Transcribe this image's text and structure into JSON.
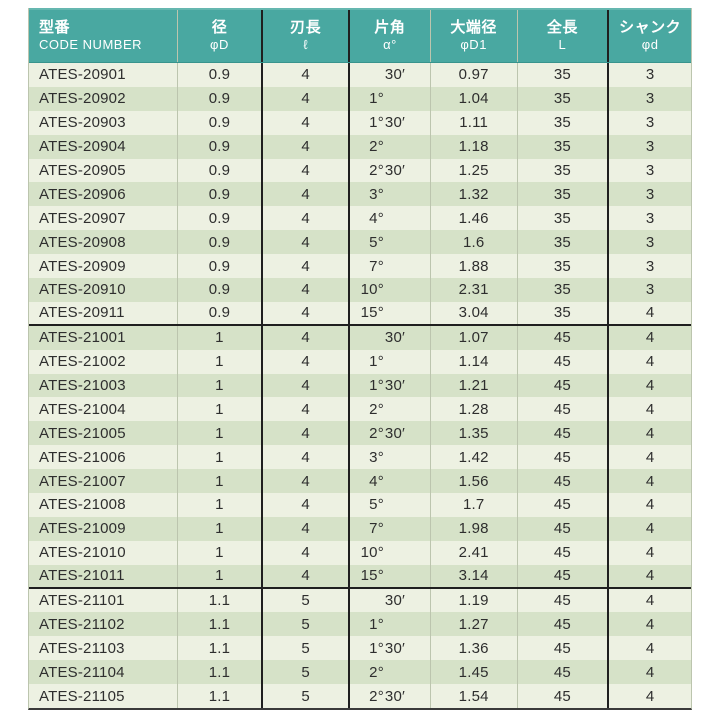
{
  "table": {
    "columns": [
      {
        "jp": "型番",
        "sub": "CODE NUMBER"
      },
      {
        "jp": "径",
        "sub": "φD"
      },
      {
        "jp": "刃長",
        "sub": "ℓ"
      },
      {
        "jp": "片角",
        "sub": "α°"
      },
      {
        "jp": "大端径",
        "sub": "φD1"
      },
      {
        "jp": "全長",
        "sub": "L"
      },
      {
        "jp": "シャンク",
        "sub": "φd"
      }
    ],
    "rows": [
      {
        "code": "ATES-20901",
        "d": "0.9",
        "l": "4",
        "deg": "",
        "min": "30′",
        "d1": "0.97",
        "L": "35",
        "shank": "3"
      },
      {
        "code": "ATES-20902",
        "d": "0.9",
        "l": "4",
        "deg": "1°",
        "min": "",
        "d1": "1.04",
        "L": "35",
        "shank": "3"
      },
      {
        "code": "ATES-20903",
        "d": "0.9",
        "l": "4",
        "deg": "1°",
        "min": "30′",
        "d1": "1.11",
        "L": "35",
        "shank": "3"
      },
      {
        "code": "ATES-20904",
        "d": "0.9",
        "l": "4",
        "deg": "2°",
        "min": "",
        "d1": "1.18",
        "L": "35",
        "shank": "3"
      },
      {
        "code": "ATES-20905",
        "d": "0.9",
        "l": "4",
        "deg": "2°",
        "min": "30′",
        "d1": "1.25",
        "L": "35",
        "shank": "3"
      },
      {
        "code": "ATES-20906",
        "d": "0.9",
        "l": "4",
        "deg": "3°",
        "min": "",
        "d1": "1.32",
        "L": "35",
        "shank": "3"
      },
      {
        "code": "ATES-20907",
        "d": "0.9",
        "l": "4",
        "deg": "4°",
        "min": "",
        "d1": "1.46",
        "L": "35",
        "shank": "3"
      },
      {
        "code": "ATES-20908",
        "d": "0.9",
        "l": "4",
        "deg": "5°",
        "min": "",
        "d1": "1.6",
        "L": "35",
        "shank": "3"
      },
      {
        "code": "ATES-20909",
        "d": "0.9",
        "l": "4",
        "deg": "7°",
        "min": "",
        "d1": "1.88",
        "L": "35",
        "shank": "3"
      },
      {
        "code": "ATES-20910",
        "d": "0.9",
        "l": "4",
        "deg": "10°",
        "min": "",
        "d1": "2.31",
        "L": "35",
        "shank": "3"
      },
      {
        "code": "ATES-20911",
        "d": "0.9",
        "l": "4",
        "deg": "15°",
        "min": "",
        "d1": "3.04",
        "L": "35",
        "shank": "4"
      },
      {
        "code": "ATES-21001",
        "d": "1",
        "l": "4",
        "deg": "",
        "min": "30′",
        "d1": "1.07",
        "L": "45",
        "shank": "4"
      },
      {
        "code": "ATES-21002",
        "d": "1",
        "l": "4",
        "deg": "1°",
        "min": "",
        "d1": "1.14",
        "L": "45",
        "shank": "4"
      },
      {
        "code": "ATES-21003",
        "d": "1",
        "l": "4",
        "deg": "1°",
        "min": "30′",
        "d1": "1.21",
        "L": "45",
        "shank": "4"
      },
      {
        "code": "ATES-21004",
        "d": "1",
        "l": "4",
        "deg": "2°",
        "min": "",
        "d1": "1.28",
        "L": "45",
        "shank": "4"
      },
      {
        "code": "ATES-21005",
        "d": "1",
        "l": "4",
        "deg": "2°",
        "min": "30′",
        "d1": "1.35",
        "L": "45",
        "shank": "4"
      },
      {
        "code": "ATES-21006",
        "d": "1",
        "l": "4",
        "deg": "3°",
        "min": "",
        "d1": "1.42",
        "L": "45",
        "shank": "4"
      },
      {
        "code": "ATES-21007",
        "d": "1",
        "l": "4",
        "deg": "4°",
        "min": "",
        "d1": "1.56",
        "L": "45",
        "shank": "4"
      },
      {
        "code": "ATES-21008",
        "d": "1",
        "l": "4",
        "deg": "5°",
        "min": "",
        "d1": "1.7",
        "L": "45",
        "shank": "4"
      },
      {
        "code": "ATES-21009",
        "d": "1",
        "l": "4",
        "deg": "7°",
        "min": "",
        "d1": "1.98",
        "L": "45",
        "shank": "4"
      },
      {
        "code": "ATES-21010",
        "d": "1",
        "l": "4",
        "deg": "10°",
        "min": "",
        "d1": "2.41",
        "L": "45",
        "shank": "4"
      },
      {
        "code": "ATES-21011",
        "d": "1",
        "l": "4",
        "deg": "15°",
        "min": "",
        "d1": "3.14",
        "L": "45",
        "shank": "4"
      },
      {
        "code": "ATES-21101",
        "d": "1.1",
        "l": "5",
        "deg": "",
        "min": "30′",
        "d1": "1.19",
        "L": "45",
        "shank": "4"
      },
      {
        "code": "ATES-21102",
        "d": "1.1",
        "l": "5",
        "deg": "1°",
        "min": "",
        "d1": "1.27",
        "L": "45",
        "shank": "4"
      },
      {
        "code": "ATES-21103",
        "d": "1.1",
        "l": "5",
        "deg": "1°",
        "min": "30′",
        "d1": "1.36",
        "L": "45",
        "shank": "4"
      },
      {
        "code": "ATES-21104",
        "d": "1.1",
        "l": "5",
        "deg": "2°",
        "min": "",
        "d1": "1.45",
        "L": "45",
        "shank": "4"
      },
      {
        "code": "ATES-21105",
        "d": "1.1",
        "l": "5",
        "deg": "2°",
        "min": "30′",
        "d1": "1.54",
        "L": "45",
        "shank": "4"
      }
    ],
    "group_end_rows": [
      10,
      21
    ]
  },
  "colors": {
    "header_bg": "#49a8a1",
    "header_edge": "#65b7b0",
    "header_text": "#ffffff",
    "row_light": "#edf1e2",
    "row_dark": "#d6e2c8",
    "border_dark": "#1f1f1f",
    "border_light": "#bcc5ae",
    "text_dark": "#2e2e2e",
    "page_bg": "#ffffff"
  }
}
